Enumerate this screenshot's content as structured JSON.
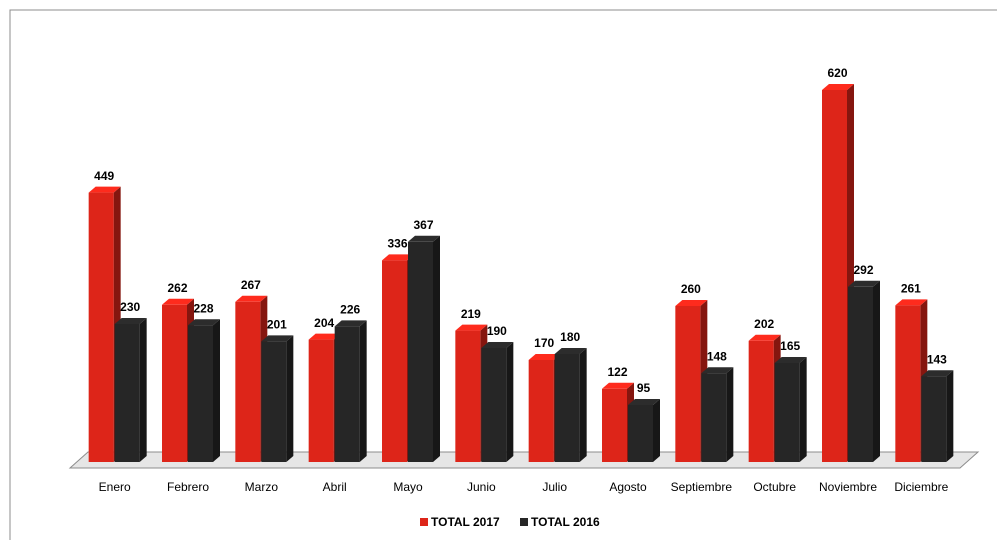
{
  "chart_data": {
    "type": "bar",
    "categories": [
      "Enero",
      "Febrero",
      "Marzo",
      "Abril",
      "Mayo",
      "Junio",
      "Julio",
      "Agosto",
      "Septiembre",
      "Octubre",
      "Noviembre",
      "Diciembre"
    ],
    "series": [
      {
        "name": "TOTAL 2017",
        "color": "#dd2519",
        "values": [
          449,
          262,
          267,
          204,
          336,
          219,
          170,
          122,
          260,
          202,
          620,
          261
        ]
      },
      {
        "name": "TOTAL 2016",
        "color": "#262626",
        "values": [
          230,
          228,
          201,
          226,
          367,
          190,
          180,
          95,
          148,
          165,
          292,
          143
        ]
      }
    ],
    "legend": "bottom"
  }
}
